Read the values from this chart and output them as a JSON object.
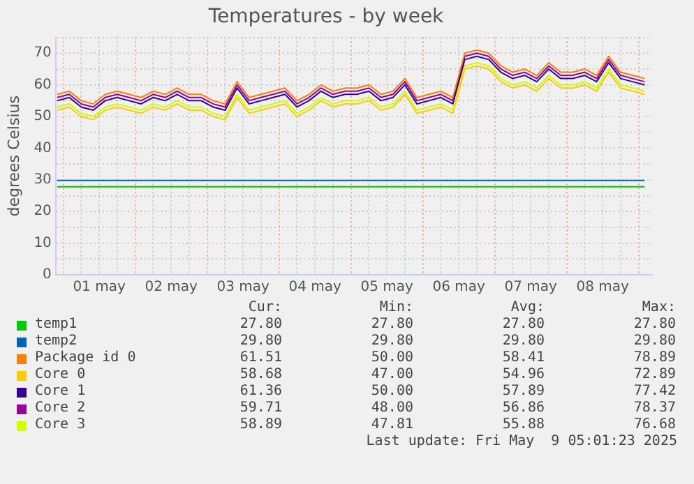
{
  "chart_data": {
    "type": "line",
    "title": "Temperatures - by week",
    "ylabel": "degrees Celsius",
    "x": [
      "2025-04-30T22:00",
      "2025-05-01T02:00",
      "2025-05-01T06:00",
      "2025-05-01T10:00",
      "2025-05-01T14:00",
      "2025-05-01T18:00",
      "2025-05-01T22:00",
      "2025-05-02T02:00",
      "2025-05-02T06:00",
      "2025-05-02T10:00",
      "2025-05-02T14:00",
      "2025-05-02T18:00",
      "2025-05-02T22:00",
      "2025-05-03T02:00",
      "2025-05-03T06:00",
      "2025-05-03T10:00",
      "2025-05-03T14:00",
      "2025-05-03T18:00",
      "2025-05-03T22:00",
      "2025-05-04T02:00",
      "2025-05-04T06:00",
      "2025-05-04T10:00",
      "2025-05-04T14:00",
      "2025-05-04T18:00",
      "2025-05-04T22:00",
      "2025-05-05T02:00",
      "2025-05-05T06:00",
      "2025-05-05T10:00",
      "2025-05-05T14:00",
      "2025-05-05T18:00",
      "2025-05-05T22:00",
      "2025-05-06T02:00",
      "2025-05-06T06:00",
      "2025-05-06T10:00",
      "2025-05-06T14:00",
      "2025-05-06T18:00",
      "2025-05-06T22:00",
      "2025-05-07T02:00",
      "2025-05-07T06:00",
      "2025-05-07T10:00",
      "2025-05-07T14:00",
      "2025-05-07T18:00",
      "2025-05-07T22:00",
      "2025-05-08T02:00",
      "2025-05-08T06:00",
      "2025-05-08T10:00",
      "2025-05-08T14:00",
      "2025-05-08T18:00",
      "2025-05-08T22:00",
      "2025-05-09T02:00"
    ],
    "series": [
      {
        "name": "temp1",
        "color": "#00cc00",
        "x": [
          "2025-04-30T22:00",
          "2025-05-09T02:00"
        ],
        "values": [
          27.8,
          27.8
        ]
      },
      {
        "name": "temp2",
        "color": "#0066b3",
        "x": [
          "2025-04-30T22:00",
          "2025-05-09T02:00"
        ],
        "values": [
          29.8,
          29.8
        ]
      },
      {
        "name": "Package id 0",
        "color": "#ff8000",
        "values": [
          57,
          58,
          55,
          54,
          57,
          58,
          57,
          56,
          58,
          57,
          59,
          57,
          57,
          55,
          54,
          61,
          56,
          57,
          58,
          59,
          55,
          57,
          60,
          58,
          59,
          59,
          60,
          57,
          58,
          62,
          56,
          57,
          58,
          56,
          70,
          71,
          70,
          66,
          64,
          65,
          63,
          67,
          64,
          64,
          65,
          63,
          69,
          64,
          63,
          62
        ]
      },
      {
        "name": "Core 0",
        "color": "#ffcc00",
        "values": [
          52,
          53,
          50,
          49,
          52,
          53,
          52,
          51,
          53,
          52,
          54,
          52,
          52,
          50,
          49,
          56,
          51,
          52,
          53,
          54,
          50,
          52,
          55,
          53,
          54,
          54,
          55,
          52,
          53,
          57,
          51,
          52,
          53,
          51,
          65,
          66,
          65,
          61,
          59,
          60,
          58,
          62,
          59,
          59,
          60,
          58,
          64,
          59,
          58,
          57
        ]
      },
      {
        "name": "Core 1",
        "color": "#330099",
        "values": [
          55,
          56,
          53,
          52,
          55,
          56,
          55,
          54,
          56,
          55,
          57,
          55,
          55,
          53,
          52,
          59,
          54,
          55,
          56,
          57,
          53,
          55,
          58,
          56,
          57,
          57,
          58,
          55,
          56,
          60,
          54,
          55,
          56,
          54,
          68,
          69,
          68,
          64,
          62,
          63,
          61,
          65,
          62,
          62,
          63,
          61,
          67,
          62,
          61,
          60
        ]
      },
      {
        "name": "Core 2",
        "color": "#990099",
        "values": [
          56,
          57,
          54,
          53,
          56,
          57,
          56,
          55,
          57,
          56,
          58,
          56,
          56,
          54,
          53,
          60,
          55,
          56,
          57,
          58,
          54,
          56,
          59,
          57,
          58,
          58,
          59,
          56,
          57,
          61,
          55,
          56,
          57,
          55,
          69,
          70,
          69,
          65,
          63,
          64,
          62,
          66,
          63,
          63,
          64,
          62,
          68,
          63,
          62,
          61
        ]
      },
      {
        "name": "Core 3",
        "color": "#ccff00",
        "values": [
          53,
          54,
          51,
          50,
          53,
          54,
          53,
          52,
          54,
          53,
          55,
          53,
          53,
          51,
          50,
          57,
          52,
          53,
          54,
          55,
          51,
          53,
          56,
          54,
          55,
          55,
          56,
          53,
          54,
          58,
          52,
          53,
          54,
          52,
          66,
          67,
          66,
          62,
          60,
          61,
          59,
          63,
          60,
          60,
          61,
          59,
          65,
          60,
          59,
          58
        ]
      }
    ],
    "xlim": [
      "2025-04-30T21:30",
      "2025-05-09T04:30"
    ],
    "xticks": [
      {
        "value": "2025-05-01T00:00",
        "label": null
      },
      {
        "value": "2025-05-01T06:00",
        "label": null
      },
      {
        "value": "2025-05-01T12:00",
        "label": "01 may"
      },
      {
        "value": "2025-05-01T18:00",
        "label": null
      },
      {
        "value": "2025-05-02T00:00",
        "label": null
      },
      {
        "value": "2025-05-02T06:00",
        "label": null
      },
      {
        "value": "2025-05-02T12:00",
        "label": "02 may"
      },
      {
        "value": "2025-05-02T18:00",
        "label": null
      },
      {
        "value": "2025-05-03T00:00",
        "label": null
      },
      {
        "value": "2025-05-03T06:00",
        "label": null
      },
      {
        "value": "2025-05-03T12:00",
        "label": "03 may"
      },
      {
        "value": "2025-05-03T18:00",
        "label": null
      },
      {
        "value": "2025-05-04T00:00",
        "label": null
      },
      {
        "value": "2025-05-04T06:00",
        "label": null
      },
      {
        "value": "2025-05-04T12:00",
        "label": "04 may"
      },
      {
        "value": "2025-05-04T18:00",
        "label": null
      },
      {
        "value": "2025-05-05T00:00",
        "label": null
      },
      {
        "value": "2025-05-05T06:00",
        "label": null
      },
      {
        "value": "2025-05-05T12:00",
        "label": "05 may"
      },
      {
        "value": "2025-05-05T18:00",
        "label": null
      },
      {
        "value": "2025-05-06T00:00",
        "label": null
      },
      {
        "value": "2025-05-06T06:00",
        "label": null
      },
      {
        "value": "2025-05-06T12:00",
        "label": "06 may"
      },
      {
        "value": "2025-05-06T18:00",
        "label": null
      },
      {
        "value": "2025-05-07T00:00",
        "label": null
      },
      {
        "value": "2025-05-07T06:00",
        "label": null
      },
      {
        "value": "2025-05-07T12:00",
        "label": "07 may"
      },
      {
        "value": "2025-05-07T18:00",
        "label": null
      },
      {
        "value": "2025-05-08T00:00",
        "label": null
      },
      {
        "value": "2025-05-08T06:00",
        "label": null
      },
      {
        "value": "2025-05-08T12:00",
        "label": "08 may"
      },
      {
        "value": "2025-05-08T18:00",
        "label": null
      },
      {
        "value": "2025-05-09T00:00",
        "label": null
      }
    ],
    "ylim": [
      0,
      75
    ],
    "yticks": [
      0,
      {
        "value": 5,
        "label": null
      },
      10,
      {
        "value": 15,
        "label": null
      },
      20,
      {
        "value": 25,
        "label": null
      },
      30,
      {
        "value": 35,
        "label": null
      },
      40,
      {
        "value": 45,
        "label": null
      },
      50,
      {
        "value": 55,
        "label": null
      },
      60,
      {
        "value": 65,
        "label": null
      },
      70,
      {
        "value": 75,
        "label": null
      }
    ],
    "grid": true,
    "legend": "bottom",
    "marker": "none",
    "line_style": "solid",
    "annotations": [
      "Cur:",
      "Min:",
      "Avg:",
      "Max:",
      "27.80",
      "27.80",
      "27.80",
      "27.80",
      "29.80",
      "29.80",
      "29.80",
      "29.80",
      "61.51",
      "50.00",
      "58.41",
      "78.89",
      "58.68",
      "47.00",
      "54.96",
      "72.89",
      "61.36",
      "50.00",
      "57.89",
      "77.42",
      "59.71",
      "48.00",
      "56.86",
      "78.37",
      "58.89",
      "47.81",
      "55.88",
      "76.68",
      "Last update: Fri May  9 05:01:23 2025"
    ]
  }
}
